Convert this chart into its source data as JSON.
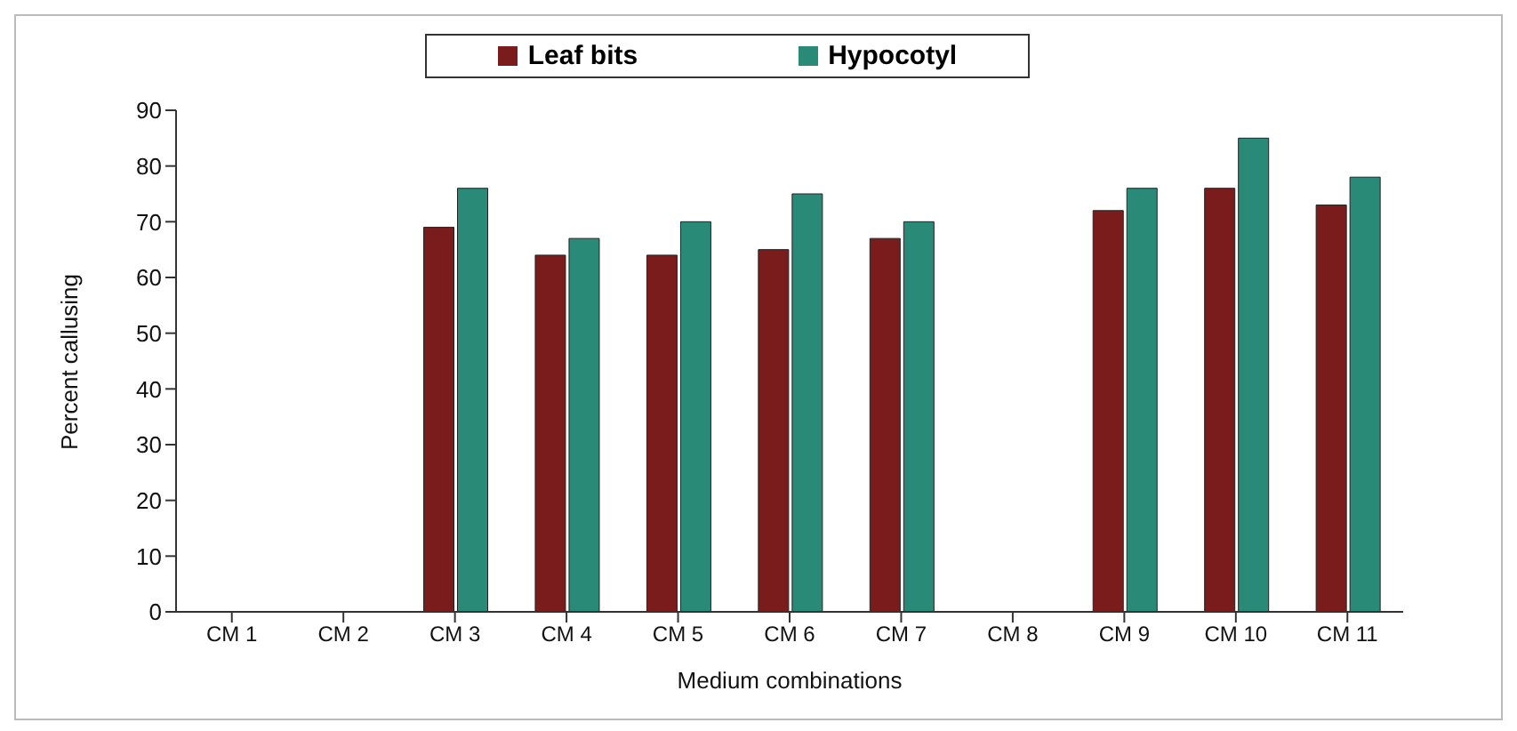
{
  "chart_data": {
    "type": "bar",
    "xlabel": "Medium combinations",
    "ylabel": "Percent callusing",
    "categories": [
      "CM 1",
      "CM 2",
      "CM 3",
      "CM 4",
      "CM 5",
      "CM 6",
      "CM 7",
      "CM 8",
      "CM 9",
      "CM 10",
      "CM 11"
    ],
    "series": [
      {
        "name": "Leaf bits",
        "color": "#7a1c1c",
        "values": [
          0,
          0,
          69,
          64,
          64,
          65,
          67,
          0,
          72,
          76,
          73
        ]
      },
      {
        "name": "Hypocotyl",
        "color": "#2a8a78",
        "values": [
          0,
          0,
          76,
          67,
          70,
          75,
          70,
          0,
          76,
          85,
          78
        ]
      }
    ],
    "ylim": [
      0,
      90
    ],
    "yticks": [
      0,
      10,
      20,
      30,
      40,
      50,
      60,
      70,
      80,
      90
    ],
    "grid": false,
    "legend": "top"
  }
}
